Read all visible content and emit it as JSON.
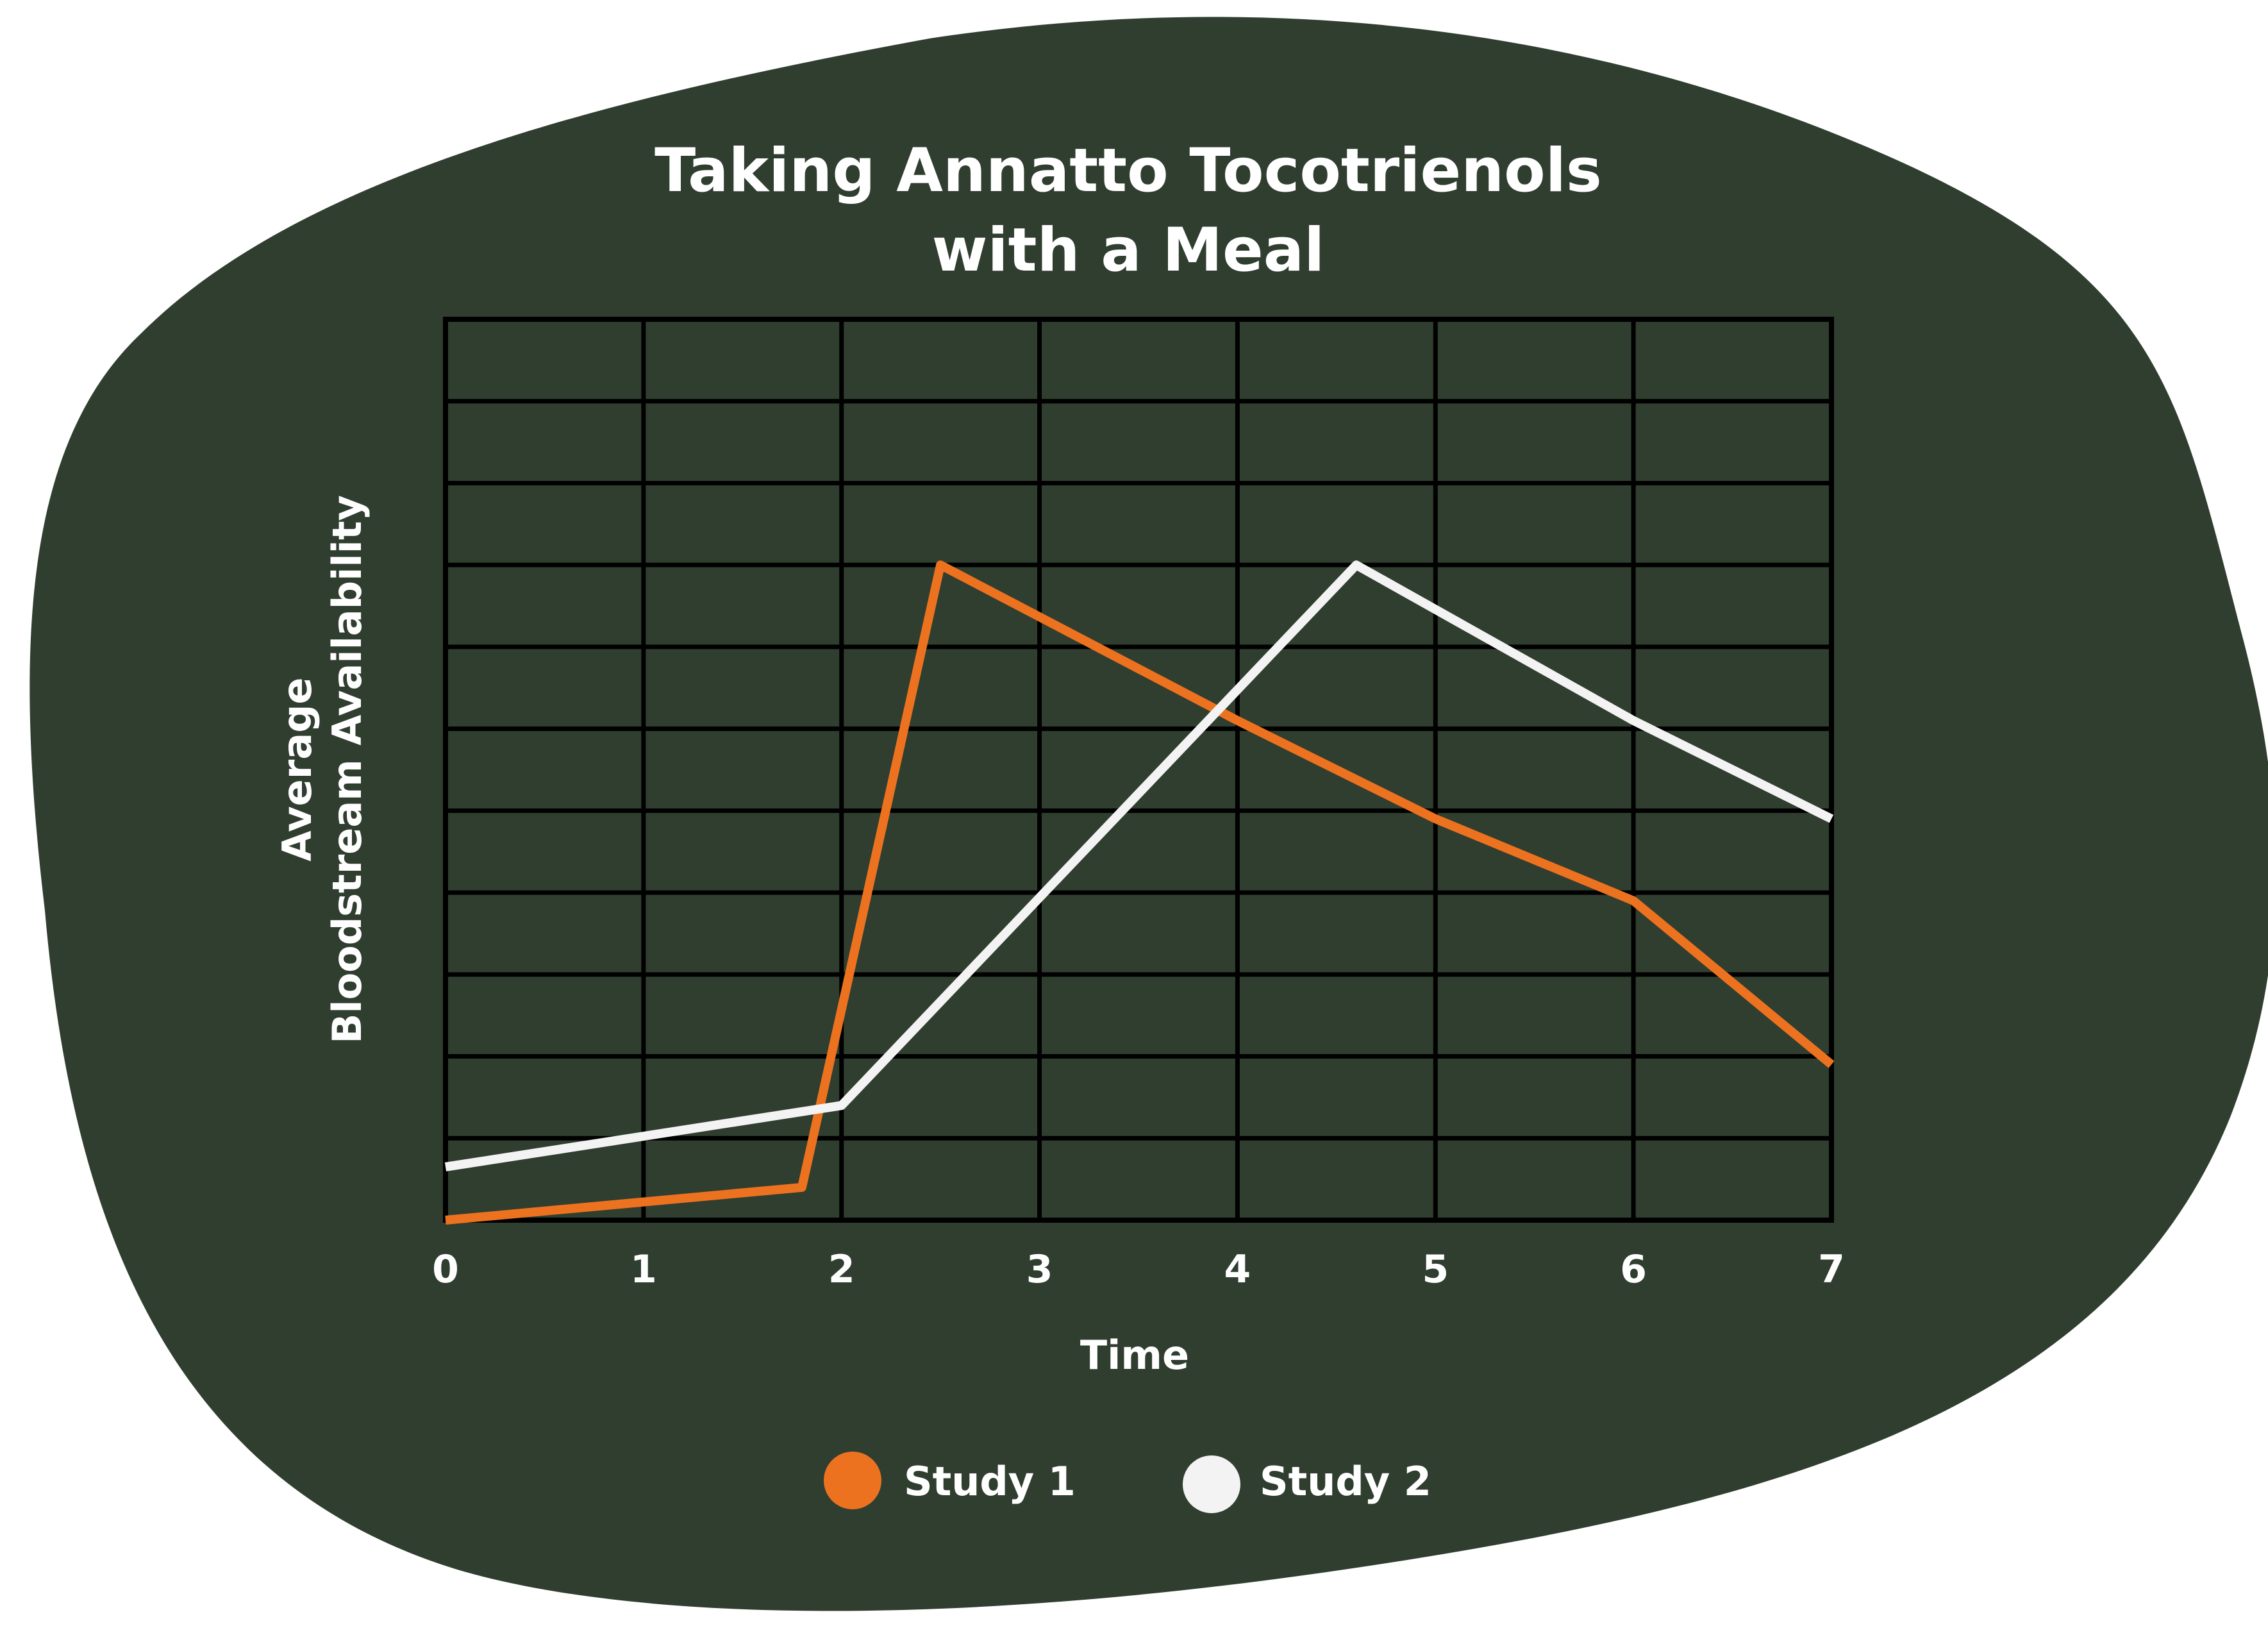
{
  "chart_data": {
    "type": "line",
    "title_lines": [
      "Taking Annatto Tocotrienols",
      "with a Meal"
    ],
    "xlabel": "Time",
    "ylabel_lines": [
      "Average",
      "Bloodstream Availability"
    ],
    "x_ticks": [
      "0",
      "1",
      "2",
      "3",
      "4",
      "5",
      "6",
      "7"
    ],
    "xlim": [
      0,
      7
    ],
    "ylim": [
      0,
      11
    ],
    "grid": true,
    "legend_position": "bottom-center",
    "series": [
      {
        "name": "Study 1",
        "color": "#ec7220",
        "x": [
          0,
          1.8,
          2.5,
          4,
          5,
          6,
          7
        ],
        "y": [
          0,
          0.4,
          8,
          6.1,
          4.9,
          3.9,
          1.9
        ]
      },
      {
        "name": "Study 2",
        "color": "#f3f3f3",
        "x": [
          0,
          2,
          4.6,
          6,
          7
        ],
        "y": [
          0.65,
          1.4,
          8,
          6.1,
          4.9
        ]
      }
    ]
  },
  "colors": {
    "background": "#ffffff",
    "blob": "#303e30",
    "grid": "#000000"
  }
}
